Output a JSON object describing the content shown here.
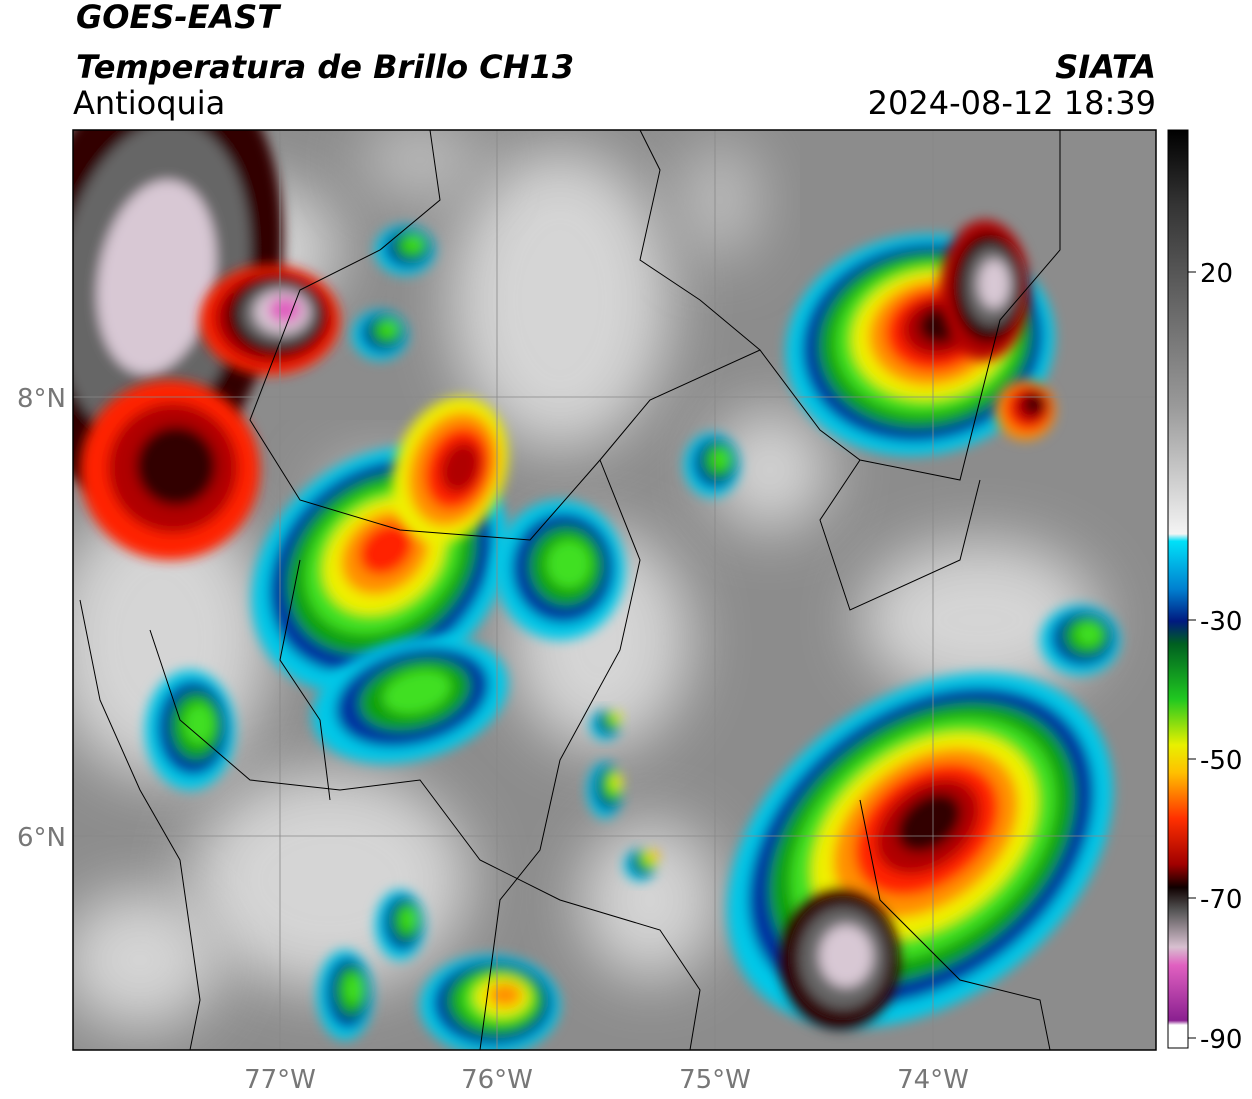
{
  "header": {
    "satellite": "GOES-EAST",
    "product": "Temperatura de Brillo CH13",
    "region": "Antioquia",
    "source": "SIATA",
    "datetime": "2024-08-12 18:39"
  },
  "map": {
    "lat_labels": [
      "8°N",
      "6°N"
    ],
    "lon_labels": [
      "77°W",
      "76°W",
      "75°W",
      "74°W"
    ]
  },
  "colorbar": {
    "tick_labels": [
      "20",
      "-30",
      "-50",
      "-70",
      "-90"
    ]
  }
}
